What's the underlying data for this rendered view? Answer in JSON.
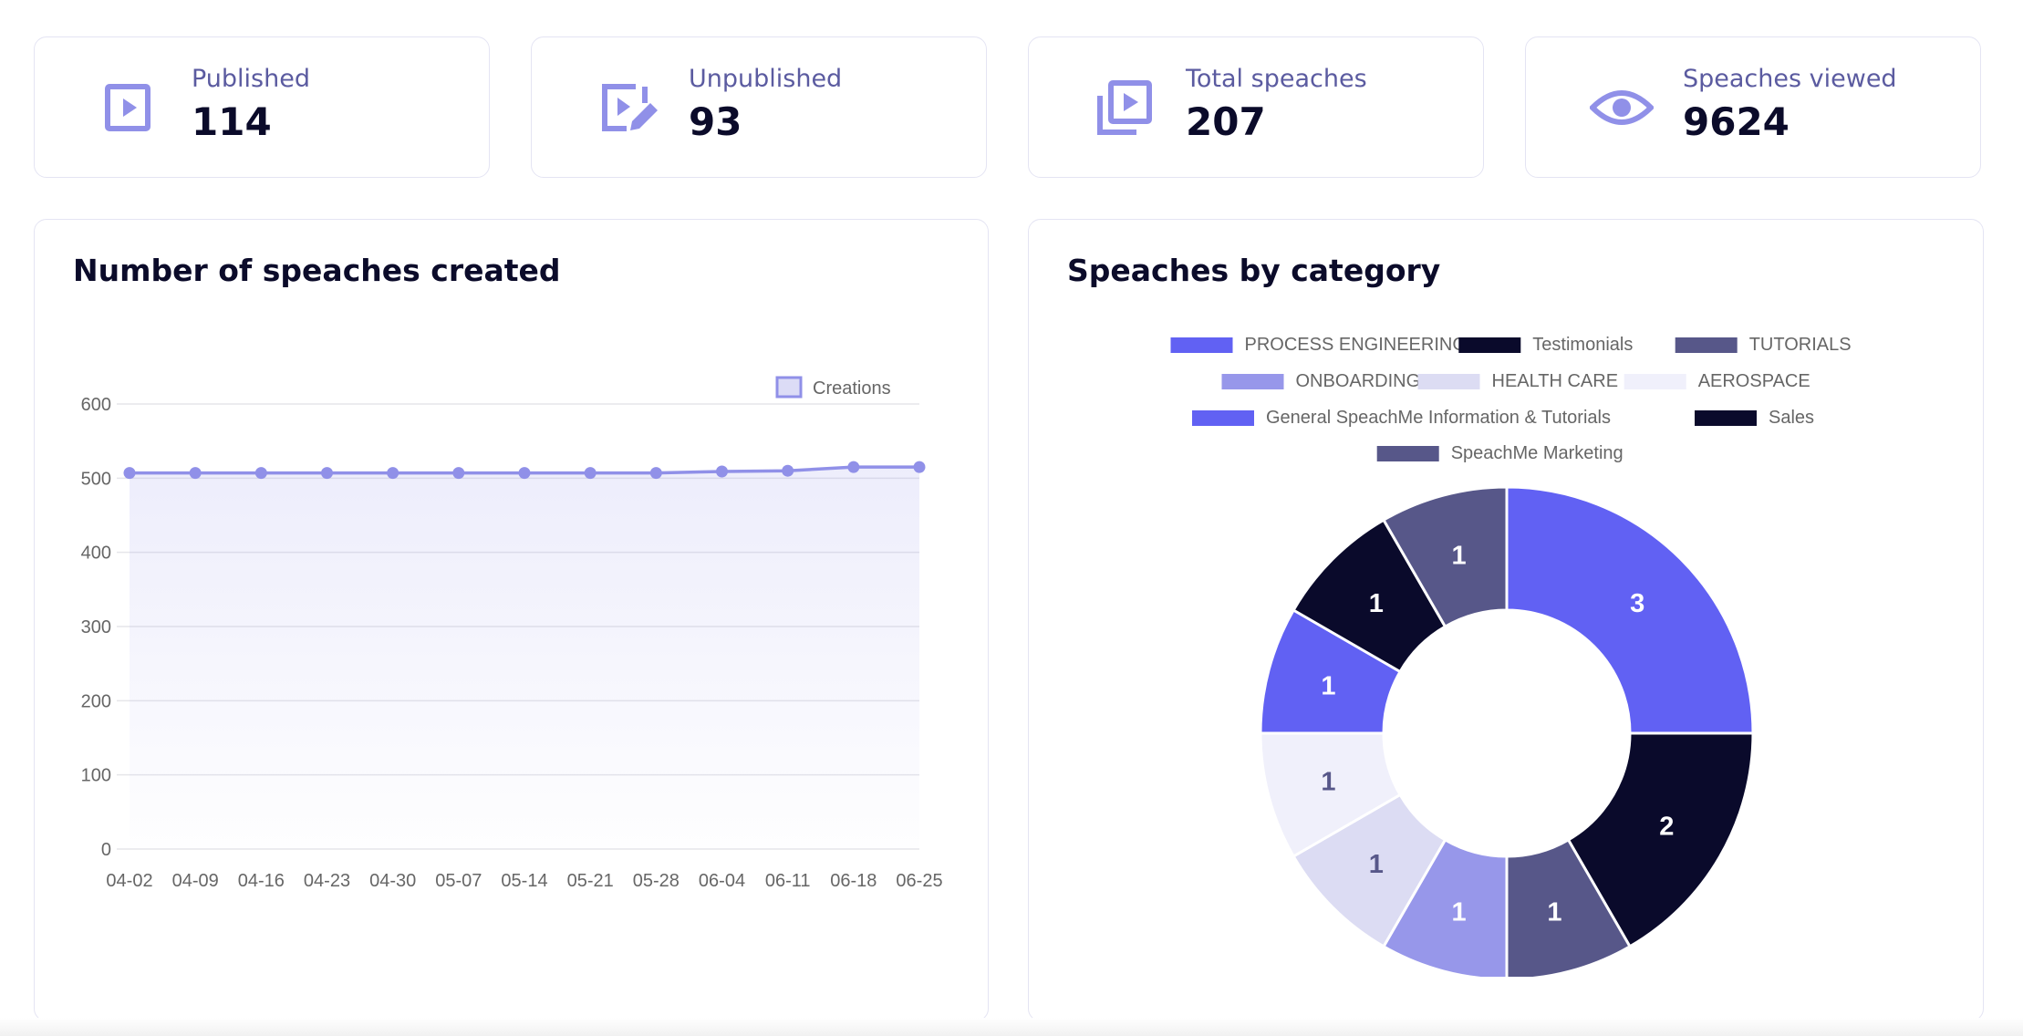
{
  "stats": [
    {
      "label": "Published",
      "value": "114",
      "icon": "play-square-icon"
    },
    {
      "label": "Unpublished",
      "value": "93",
      "icon": "play-edit-icon"
    },
    {
      "label": "Total speaches",
      "value": "207",
      "icon": "play-stack-icon"
    },
    {
      "label": "Speaches viewed",
      "value": "9624",
      "icon": "eye-icon"
    }
  ],
  "colors": {
    "accent": "#9090e8",
    "card_border": "#e4e4f3",
    "label_text": "#5b5ba0",
    "value_text": "#0b0b2a"
  },
  "line_panel": {
    "title": "Number of speaches created"
  },
  "pie_panel": {
    "title": "Speaches by category"
  },
  "chart_data": [
    {
      "type": "area",
      "title": "Number of speaches created",
      "x": [
        "04-02",
        "04-09",
        "04-16",
        "04-23",
        "04-30",
        "05-07",
        "05-14",
        "05-21",
        "05-28",
        "06-04",
        "06-11",
        "06-18",
        "06-25"
      ],
      "series": [
        {
          "name": "Creations",
          "values": [
            507,
            507,
            507,
            507,
            507,
            507,
            507,
            507,
            507,
            509,
            510,
            515,
            515
          ],
          "color": "#9090e8"
        }
      ],
      "ylim": [
        0,
        600
      ],
      "yticks": [
        0,
        100,
        200,
        300,
        400,
        500,
        600
      ],
      "grid": true,
      "legend_position": "top-right"
    },
    {
      "type": "pie",
      "title": "Speaches by category",
      "donut": true,
      "labels": [
        "PROCESS ENGINEERING",
        "Testimonials",
        "TUTORIALS",
        "ONBOARDING",
        "HEALTH CARE",
        "AEROSPACE",
        "General SpeachMe Information & Tutorials",
        "Sales",
        "SpeachMe Marketing"
      ],
      "values": [
        3,
        2,
        1,
        1,
        1,
        1,
        1,
        1,
        1
      ],
      "colors": [
        "#6161f3",
        "#0a0a2b",
        "#575789",
        "#9797ea",
        "#dcdcf3",
        "#f0f0fb",
        "#6161f3",
        "#0a0a2b",
        "#575789"
      ],
      "label_colors": [
        "#ffffff",
        "#ffffff",
        "#ffffff",
        "#ffffff",
        "#575789",
        "#575789",
        "#ffffff",
        "#ffffff",
        "#ffffff"
      ],
      "legend_position": "top"
    }
  ]
}
